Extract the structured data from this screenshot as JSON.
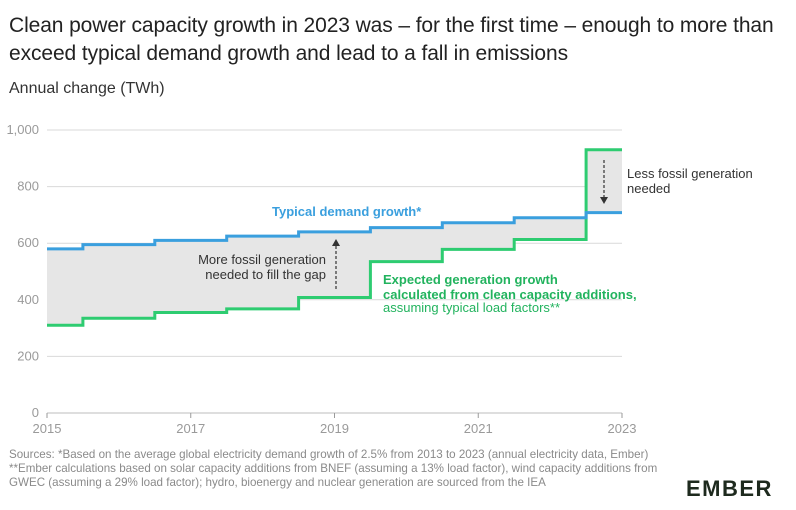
{
  "title": "Clean power capacity growth in 2023 was – for the first time – enough to more than exceed typical demand growth and lead to a fall in emissions",
  "subtitle": "Annual change (TWh)",
  "sources": "Sources: *Based on the average global electricity demand growth of 2.5% from 2013 to 2023 (annual electricity data, Ember) **Ember calculations based on solar capacity additions from BNEF (assuming a 13% load factor), wind capacity additions from GWEC (assuming a 29% load factor); hydro, bioenergy and nuclear generation are sourced from the IEA",
  "logo": "EMBER",
  "colors": {
    "demand": "#3a9fde",
    "generation": "#2ecc71",
    "gap_fill": "#e6e6e6",
    "grid": "#d9d9d9"
  },
  "annotations": {
    "demand_label": "Typical demand growth*",
    "generation_label_line1": "Expected generation growth",
    "generation_label_line2": "calculated from clean capacity additions,",
    "generation_label_line3": "assuming typical load factors**",
    "more_fossil_line1": "More fossil generation",
    "more_fossil_line2": "needed to fill the gap",
    "less_fossil_line1": "Less fossil generation",
    "less_fossil_line2": "needed"
  },
  "chart_data": {
    "type": "line",
    "step": true,
    "x": [
      2015,
      2016,
      2017,
      2018,
      2019,
      2020,
      2021,
      2022,
      2023
    ],
    "xticks": [
      "2015",
      "2017",
      "2019",
      "2021",
      "2023"
    ],
    "yticks": [
      "0",
      "200",
      "400",
      "600",
      "800",
      "1,000"
    ],
    "ylim": [
      0,
      1000
    ],
    "xlim": [
      2015,
      2023
    ],
    "series": [
      {
        "name": "Typical demand growth*",
        "values": [
          580,
          595,
          610,
          625,
          640,
          655,
          672,
          690,
          708
        ]
      },
      {
        "name": "Expected generation growth",
        "values": [
          310,
          335,
          355,
          368,
          408,
          535,
          578,
          613,
          930
        ]
      }
    ]
  }
}
